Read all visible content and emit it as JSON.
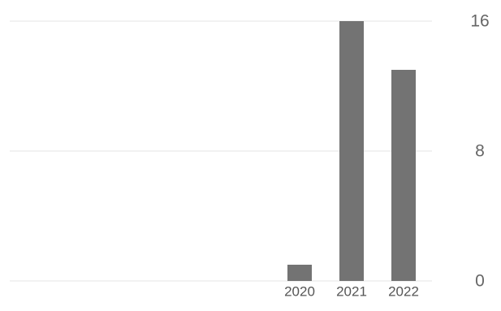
{
  "chart_data": {
    "type": "bar",
    "title": "",
    "xlabel": "",
    "ylabel": "",
    "categories": [
      "2020",
      "2021",
      "2022"
    ],
    "values": [
      1,
      16,
      13
    ],
    "ylim": [
      0,
      16
    ],
    "y_ticks": [
      0,
      8,
      16
    ],
    "y_axis_side": "right",
    "grid": true,
    "legend": "none",
    "colors": {
      "bar": "#737373",
      "gridline": "#e6e6e6",
      "tick_text": "#666666"
    }
  }
}
